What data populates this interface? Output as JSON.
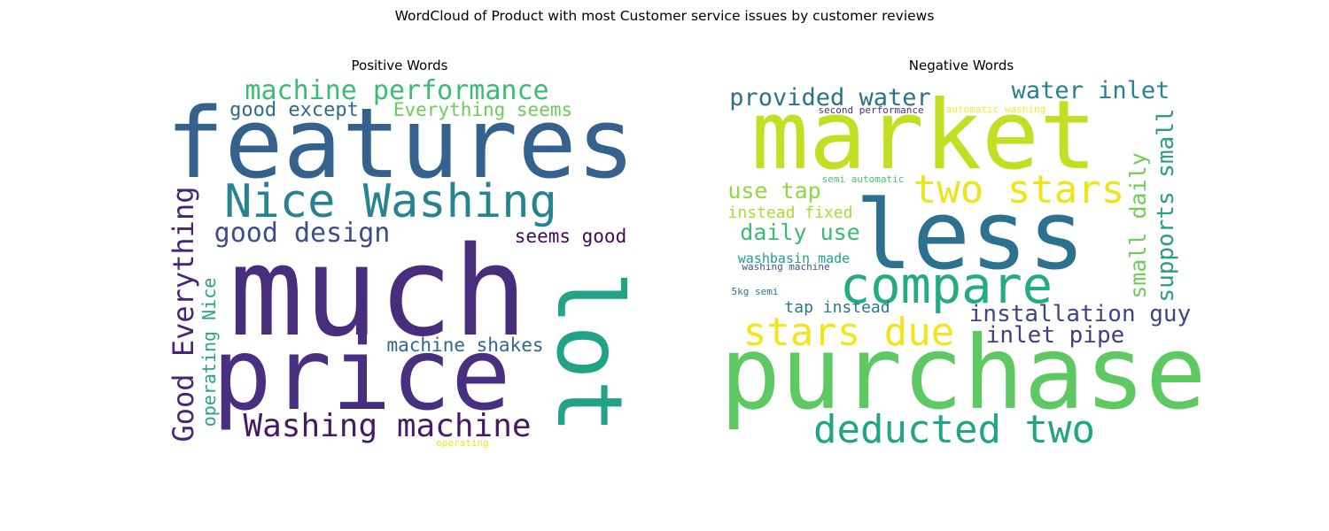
{
  "title": "WordCloud of Product with most Customer service issues by customer reviews",
  "chart_data": {
    "type": "wordcloud",
    "panels": [
      {
        "title": "Positive Words",
        "words": [
          {
            "text": "features",
            "weight": 1.0,
            "color": "#35618d"
          },
          {
            "text": "much",
            "weight": 1.0,
            "color": "#482d7d"
          },
          {
            "text": "price",
            "weight": 0.9,
            "color": "#482f7f"
          },
          {
            "text": "lot",
            "weight": 0.75,
            "color": "#22a388"
          },
          {
            "text": "Nice Washing",
            "weight": 0.45,
            "color": "#26838f"
          },
          {
            "text": "machine performance",
            "weight": 0.32,
            "color": "#3bbc74"
          },
          {
            "text": "good design",
            "weight": 0.32,
            "color": "#3e4c8a"
          },
          {
            "text": "Washing machine",
            "weight": 0.35,
            "color": "#471a68"
          },
          {
            "text": "Good Everything",
            "weight": 0.34,
            "color": "#482475"
          },
          {
            "text": "good except",
            "weight": 0.24,
            "color": "#2f6b8e"
          },
          {
            "text": "Everything seems",
            "weight": 0.22,
            "color": "#6ccd5a"
          },
          {
            "text": "seems good",
            "weight": 0.22,
            "color": "#44095a"
          },
          {
            "text": "machine shakes",
            "weight": 0.22,
            "color": "#31688e"
          },
          {
            "text": "operating Nice",
            "weight": 0.2,
            "color": "#2ea084"
          },
          {
            "text": "operating",
            "weight": 0.1,
            "color": "#f1e51d"
          }
        ]
      },
      {
        "title": "Negative Words",
        "words": [
          {
            "text": "market",
            "weight": 1.0,
            "color": "#c2df23"
          },
          {
            "text": "less",
            "weight": 1.0,
            "color": "#2c728e"
          },
          {
            "text": "purchase",
            "weight": 1.0,
            "color": "#5ec962"
          },
          {
            "text": "compare",
            "weight": 0.6,
            "color": "#25ab82"
          },
          {
            "text": "two stars",
            "weight": 0.45,
            "color": "#ece51b"
          },
          {
            "text": "stars due",
            "weight": 0.45,
            "color": "#f1e51d"
          },
          {
            "text": "deducted two",
            "weight": 0.45,
            "color": "#21a585"
          },
          {
            "text": "provided water",
            "weight": 0.28,
            "color": "#2d708e"
          },
          {
            "text": "water inlet",
            "weight": 0.28,
            "color": "#26828e"
          },
          {
            "text": "installation guy",
            "weight": 0.26,
            "color": "#414487"
          },
          {
            "text": "inlet pipe",
            "weight": 0.26,
            "color": "#433e85"
          },
          {
            "text": "supports small",
            "weight": 0.26,
            "color": "#2a9c89"
          },
          {
            "text": "small daily",
            "weight": 0.26,
            "color": "#6ece58"
          },
          {
            "text": "use tap",
            "weight": 0.24,
            "color": "#90d743"
          },
          {
            "text": "daily use",
            "weight": 0.24,
            "color": "#3aba76"
          },
          {
            "text": "instead fixed",
            "weight": 0.18,
            "color": "#a8db34"
          },
          {
            "text": "tap instead",
            "weight": 0.18,
            "color": "#2a788e"
          },
          {
            "text": "washbasin made",
            "weight": 0.15,
            "color": "#1fa088"
          },
          {
            "text": "washing machine",
            "weight": 0.12,
            "color": "#3b528b"
          },
          {
            "text": "5kg semi",
            "weight": 0.11,
            "color": "#2b748e"
          },
          {
            "text": "second performance",
            "weight": 0.1,
            "color": "#46327e"
          },
          {
            "text": "automatic washing",
            "weight": 0.1,
            "color": "#fde725"
          },
          {
            "text": "semi automatic",
            "weight": 0.1,
            "color": "#4ac16d"
          }
        ]
      }
    ]
  }
}
